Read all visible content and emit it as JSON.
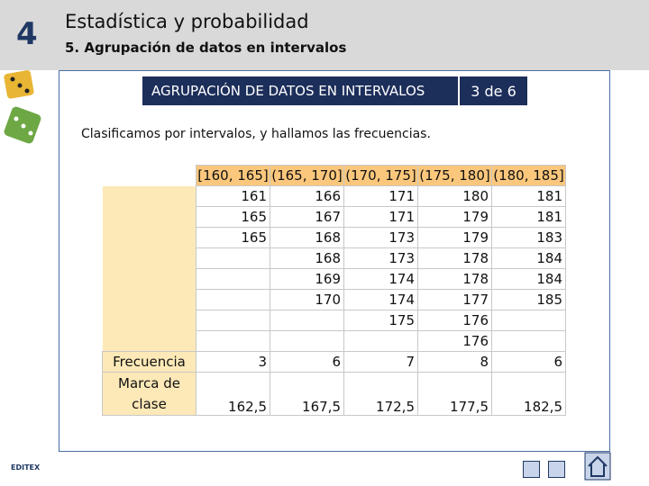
{
  "header": {
    "chapter": "4",
    "title": "Estadística y probabilidad",
    "subtitle": "5. Agrupación de datos en intervalos"
  },
  "banner": {
    "title": "AGRUPACIÓN DE DATOS EN INTERVALOS",
    "page": "3 de 6"
  },
  "intro": "Clasificamos por intervalos, y hallamos las frecuencias.",
  "table": {
    "columns": [
      "[160, 165]",
      "(165, 170]",
      "(170, 175]",
      "(175, 180]",
      "(180, 185]"
    ],
    "rows": [
      [
        161,
        166,
        171,
        180,
        181
      ],
      [
        165,
        167,
        171,
        179,
        181
      ],
      [
        165,
        168,
        173,
        179,
        183
      ],
      [
        null,
        168,
        173,
        178,
        184
      ],
      [
        null,
        169,
        174,
        178,
        184
      ],
      [
        null,
        170,
        174,
        177,
        185
      ],
      [
        null,
        null,
        175,
        176,
        null
      ],
      [
        null,
        null,
        null,
        176,
        null
      ]
    ],
    "frequency": {
      "label": "Frecuencia",
      "values": [
        3,
        6,
        7,
        8,
        6
      ]
    },
    "class_mark": {
      "label": "Marca de clase",
      "values": [
        "162,5",
        "167,5",
        "172,5",
        "177,5",
        "182,5"
      ]
    }
  },
  "footer": {
    "logo": "EDITEX"
  }
}
